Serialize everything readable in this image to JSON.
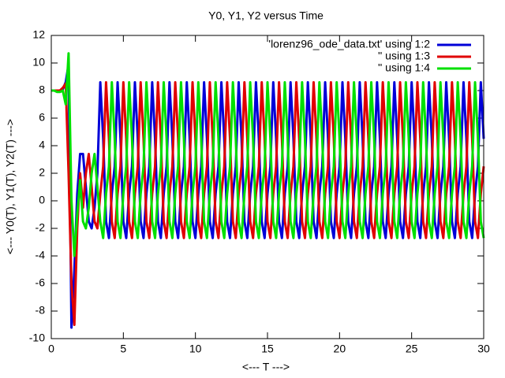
{
  "chart_data": {
    "type": "line",
    "title": "Y0, Y1, Y2 versus Time",
    "xlabel": "<--- T --->",
    "ylabel": "<--- Y0(T), Y1(T), Y2(T) --->",
    "xlim": [
      0,
      30
    ],
    "ylim": [
      -10,
      12
    ],
    "xticks": [
      0,
      5,
      10,
      15,
      20,
      25,
      30
    ],
    "yticks": [
      -10,
      -8,
      -6,
      -4,
      -2,
      0,
      2,
      4,
      6,
      8,
      10,
      12
    ],
    "legend": "top-right",
    "x": [
      0,
      0.2,
      0.4,
      0.6,
      0.8,
      1.0,
      1.2,
      1.4,
      1.6,
      1.8,
      2.0,
      2.2,
      2.4,
      2.6,
      2.8,
      3.0,
      3.2,
      3.4,
      3.6,
      3.8,
      4.0,
      4.2,
      4.4,
      4.6,
      4.8,
      5.0,
      5.2,
      5.4,
      5.6,
      5.8,
      6.0,
      6.2,
      6.4,
      6.6,
      6.8,
      7.0,
      7.2,
      7.4,
      7.6,
      7.8,
      8.0,
      8.2,
      8.4,
      8.6,
      8.8,
      9.0,
      9.2,
      9.4,
      9.6,
      9.8,
      10.0,
      10.2,
      10.4,
      10.6,
      10.8,
      11.0,
      11.2,
      11.4,
      11.6,
      11.8,
      12.0,
      12.2,
      12.4,
      12.6,
      12.8,
      13.0,
      13.2,
      13.4,
      13.6,
      13.8,
      14.0,
      14.2,
      14.4,
      14.6,
      14.8,
      15.0,
      15.2,
      15.4,
      15.6,
      15.8,
      16.0,
      16.2,
      16.4,
      16.6,
      16.8,
      17.0,
      17.2,
      17.4,
      17.6,
      17.8,
      18.0,
      18.2,
      18.4,
      18.6,
      18.8,
      19.0,
      19.2,
      19.4,
      19.6,
      19.8,
      20.0,
      20.2,
      20.4,
      20.6,
      20.8,
      21.0,
      21.2,
      21.4,
      21.6,
      21.8,
      22.0,
      22.2,
      22.4,
      22.6,
      22.8,
      23.0,
      23.2,
      23.4,
      23.6,
      23.8,
      24.0,
      24.2,
      24.4,
      24.6,
      24.8,
      25.0,
      25.2,
      25.4,
      25.6,
      25.8,
      26.0,
      26.2,
      26.4,
      26.6,
      26.8,
      27.0,
      27.2,
      27.4,
      27.6,
      27.8,
      28.0,
      28.2,
      28.4,
      28.6,
      28.8,
      29.0,
      29.2,
      29.4,
      29.6,
      29.8,
      30.0
    ],
    "series": [
      {
        "name": "'lorenz96_ode_data.txt' using 1:2",
        "color": "#0000d8",
        "values": [
          8,
          8,
          8,
          8,
          8.1,
          8.6,
          9.9,
          -9.2,
          -5,
          0.5,
          3.4,
          3.4,
          1,
          -1.5,
          -2,
          -0.5,
          2,
          8.6,
          4.5,
          -1.5,
          -2.7,
          0.5,
          2.5,
          8.6,
          4.5,
          -1.5,
          -2.7,
          0.5,
          2.5,
          8.6,
          4.5,
          -1.5,
          -2.7,
          0.5,
          2.5,
          8.6,
          4.5,
          -1.5,
          -2.7,
          0.5,
          2.5,
          8.6,
          4.5,
          -1.5,
          -2.7,
          0.5,
          2.5,
          8.6,
          4.5,
          -1.5,
          -2.7,
          0.5,
          2.5,
          8.6,
          4.5,
          -1.5,
          -2.7,
          0.5,
          2.5,
          8.6,
          4.5,
          -1.5,
          -2.7,
          0.5,
          2.5,
          8.6,
          4.5,
          -1.5,
          -2.7,
          0.5,
          2.5,
          8.6,
          4.5,
          -1.5,
          -2.7,
          0.5,
          2.5,
          8.6,
          4.5,
          -1.5,
          -2.7,
          0.5,
          2.5,
          8.6,
          4.5,
          -1.5,
          -2.7,
          0.5,
          2.5,
          8.6,
          4.5,
          -1.5,
          -2.7,
          0.5,
          2.5,
          8.6,
          4.5,
          -1.5,
          -2.7,
          0.5,
          2.5,
          8.6,
          4.5,
          -1.5,
          -2.7,
          0.5,
          2.5,
          8.6,
          4.5,
          -1.5,
          -2.7,
          0.5,
          2.5,
          8.6,
          4.5,
          -1.5,
          -2.7,
          0.5,
          2.5,
          8.6,
          4.5,
          -1.5,
          -2.7,
          0.5,
          2.5,
          8.6,
          4.5,
          -1.5,
          -2.7,
          0.5,
          2.5,
          8.6,
          4.5,
          -1.5,
          -2.7,
          0.5,
          2.5,
          8.6,
          4.5,
          -1.5,
          -2.7,
          0.5,
          2.5,
          8.6,
          4.5,
          -1.5,
          -2.7,
          0.5,
          2.5,
          8.6,
          4.5
        ]
      },
      {
        "name": "'' using 1:3",
        "color": "#e00000",
        "values": [
          8,
          8,
          8,
          8,
          8.2,
          8.5,
          2,
          -6,
          -9,
          -2,
          2,
          -0.5,
          2,
          3.4,
          1,
          -1.5,
          -2,
          0.5,
          2.5,
          8.6,
          4.5,
          -1.5,
          -2.7,
          0.5,
          2.5,
          8.6,
          4.5,
          -1.5,
          -2.7,
          0.5,
          2.5,
          8.6,
          4.5,
          -1.5,
          -2.7,
          0.5,
          2.5,
          8.6,
          4.5,
          -1.5,
          -2.7,
          0.5,
          2.5,
          8.6,
          4.5,
          -1.5,
          -2.7,
          0.5,
          2.5,
          8.6,
          4.5,
          -1.5,
          -2.7,
          0.5,
          2.5,
          8.6,
          4.5,
          -1.5,
          -2.7,
          0.5,
          2.5,
          8.6,
          4.5,
          -1.5,
          -2.7,
          0.5,
          2.5,
          8.6,
          4.5,
          -1.5,
          -2.7,
          0.5,
          2.5,
          8.6,
          4.5,
          -1.5,
          -2.7,
          0.5,
          2.5,
          8.6,
          4.5,
          -1.5,
          -2.7,
          0.5,
          2.5,
          8.6,
          4.5,
          -1.5,
          -2.7,
          0.5,
          2.5,
          8.6,
          4.5,
          -1.5,
          -2.7,
          0.5,
          2.5,
          8.6,
          4.5,
          -1.5,
          -2.7,
          0.5,
          2.5,
          8.6,
          4.5,
          -1.5,
          -2.7,
          0.5,
          2.5,
          8.6,
          4.5,
          -1.5,
          -2.7,
          0.5,
          2.5,
          8.6,
          4.5,
          -1.5,
          -2.7,
          0.5,
          2.5,
          8.6,
          4.5,
          -1.5,
          -2.7,
          0.5,
          2.5,
          8.6,
          4.5,
          -1.5,
          -2.7,
          0.5,
          2.5,
          8.6,
          4.5,
          -1.5,
          -2.7,
          0.5,
          2.5,
          8.6,
          4.5,
          -1.5,
          -2.7,
          0.5,
          2.5,
          8.6,
          4.5,
          -1.5,
          -2.7,
          0.5,
          2.5
        ]
      },
      {
        "name": "'' using 1:4",
        "color": "#00e000",
        "values": [
          8,
          8,
          7.9,
          7.9,
          8,
          7,
          10.7,
          0,
          -4,
          -1,
          1.5,
          -1.5,
          -2,
          -0.5,
          2,
          3.4,
          1,
          -1.5,
          -2.7,
          0.5,
          2.5,
          8.6,
          4.5,
          -1.5,
          -2.7,
          0.5,
          2.5,
          8.6,
          4.5,
          -1.5,
          -2.7,
          0.5,
          2.5,
          8.6,
          4.5,
          -1.5,
          -2.7,
          0.5,
          2.5,
          8.6,
          4.5,
          -1.5,
          -2.7,
          0.5,
          2.5,
          8.6,
          4.5,
          -1.5,
          -2.7,
          0.5,
          2.5,
          8.6,
          4.5,
          -1.5,
          -2.7,
          0.5,
          2.5,
          8.6,
          4.5,
          -1.5,
          -2.7,
          0.5,
          2.5,
          8.6,
          4.5,
          -1.5,
          -2.7,
          0.5,
          2.5,
          8.6,
          4.5,
          -1.5,
          -2.7,
          0.5,
          2.5,
          8.6,
          4.5,
          -1.5,
          -2.7,
          0.5,
          2.5,
          8.6,
          4.5,
          -1.5,
          -2.7,
          0.5,
          2.5,
          8.6,
          4.5,
          -1.5,
          -2.7,
          0.5,
          2.5,
          8.6,
          4.5,
          -1.5,
          -2.7,
          0.5,
          2.5,
          8.6,
          4.5,
          -1.5,
          -2.7,
          0.5,
          2.5,
          8.6,
          4.5,
          -1.5,
          -2.7,
          0.5,
          2.5,
          8.6,
          4.5,
          -1.5,
          -2.7,
          0.5,
          2.5,
          8.6,
          4.5,
          -1.5,
          -2.7,
          0.5,
          2.5,
          8.6,
          4.5,
          -1.5,
          -2.7,
          0.5,
          2.5,
          8.6,
          4.5,
          -1.5,
          -2.7,
          0.5,
          2.5,
          8.6,
          4.5,
          -1.5,
          -2.7,
          0.5,
          2.5,
          8.6,
          4.5,
          -1.5,
          -2.7,
          0.5,
          2.5,
          8.6,
          4.5,
          -1.5,
          -2.7
        ]
      }
    ]
  }
}
